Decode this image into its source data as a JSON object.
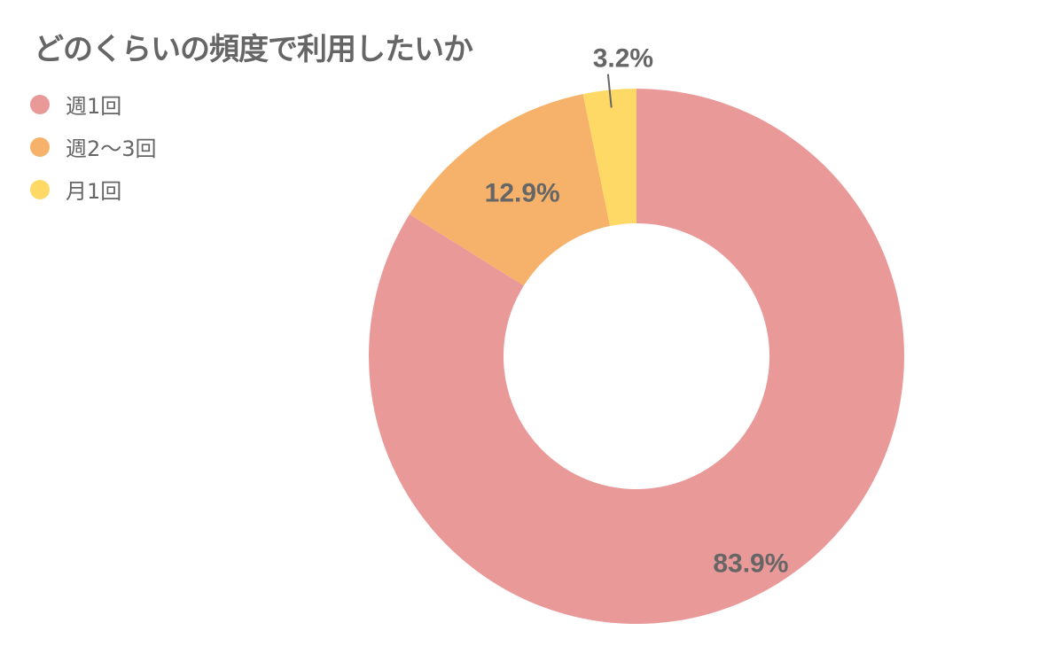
{
  "chart_data": {
    "type": "pie",
    "donut": true,
    "title": "どのくらいの頻度で利用したいか",
    "start_angle": "top",
    "direction": "clockwise",
    "legend_position": "top-left",
    "slices": [
      {
        "label": "週1回",
        "value": 83.9,
        "display": "83.9%",
        "color": "#EA9999"
      },
      {
        "label": "週2〜3回",
        "value": 12.9,
        "display": "12.9%",
        "color": "#F6B26B"
      },
      {
        "label": "月1回",
        "value": 3.2,
        "display": "3.2%",
        "color": "#FFD966"
      }
    ],
    "text_color": "#666666"
  }
}
